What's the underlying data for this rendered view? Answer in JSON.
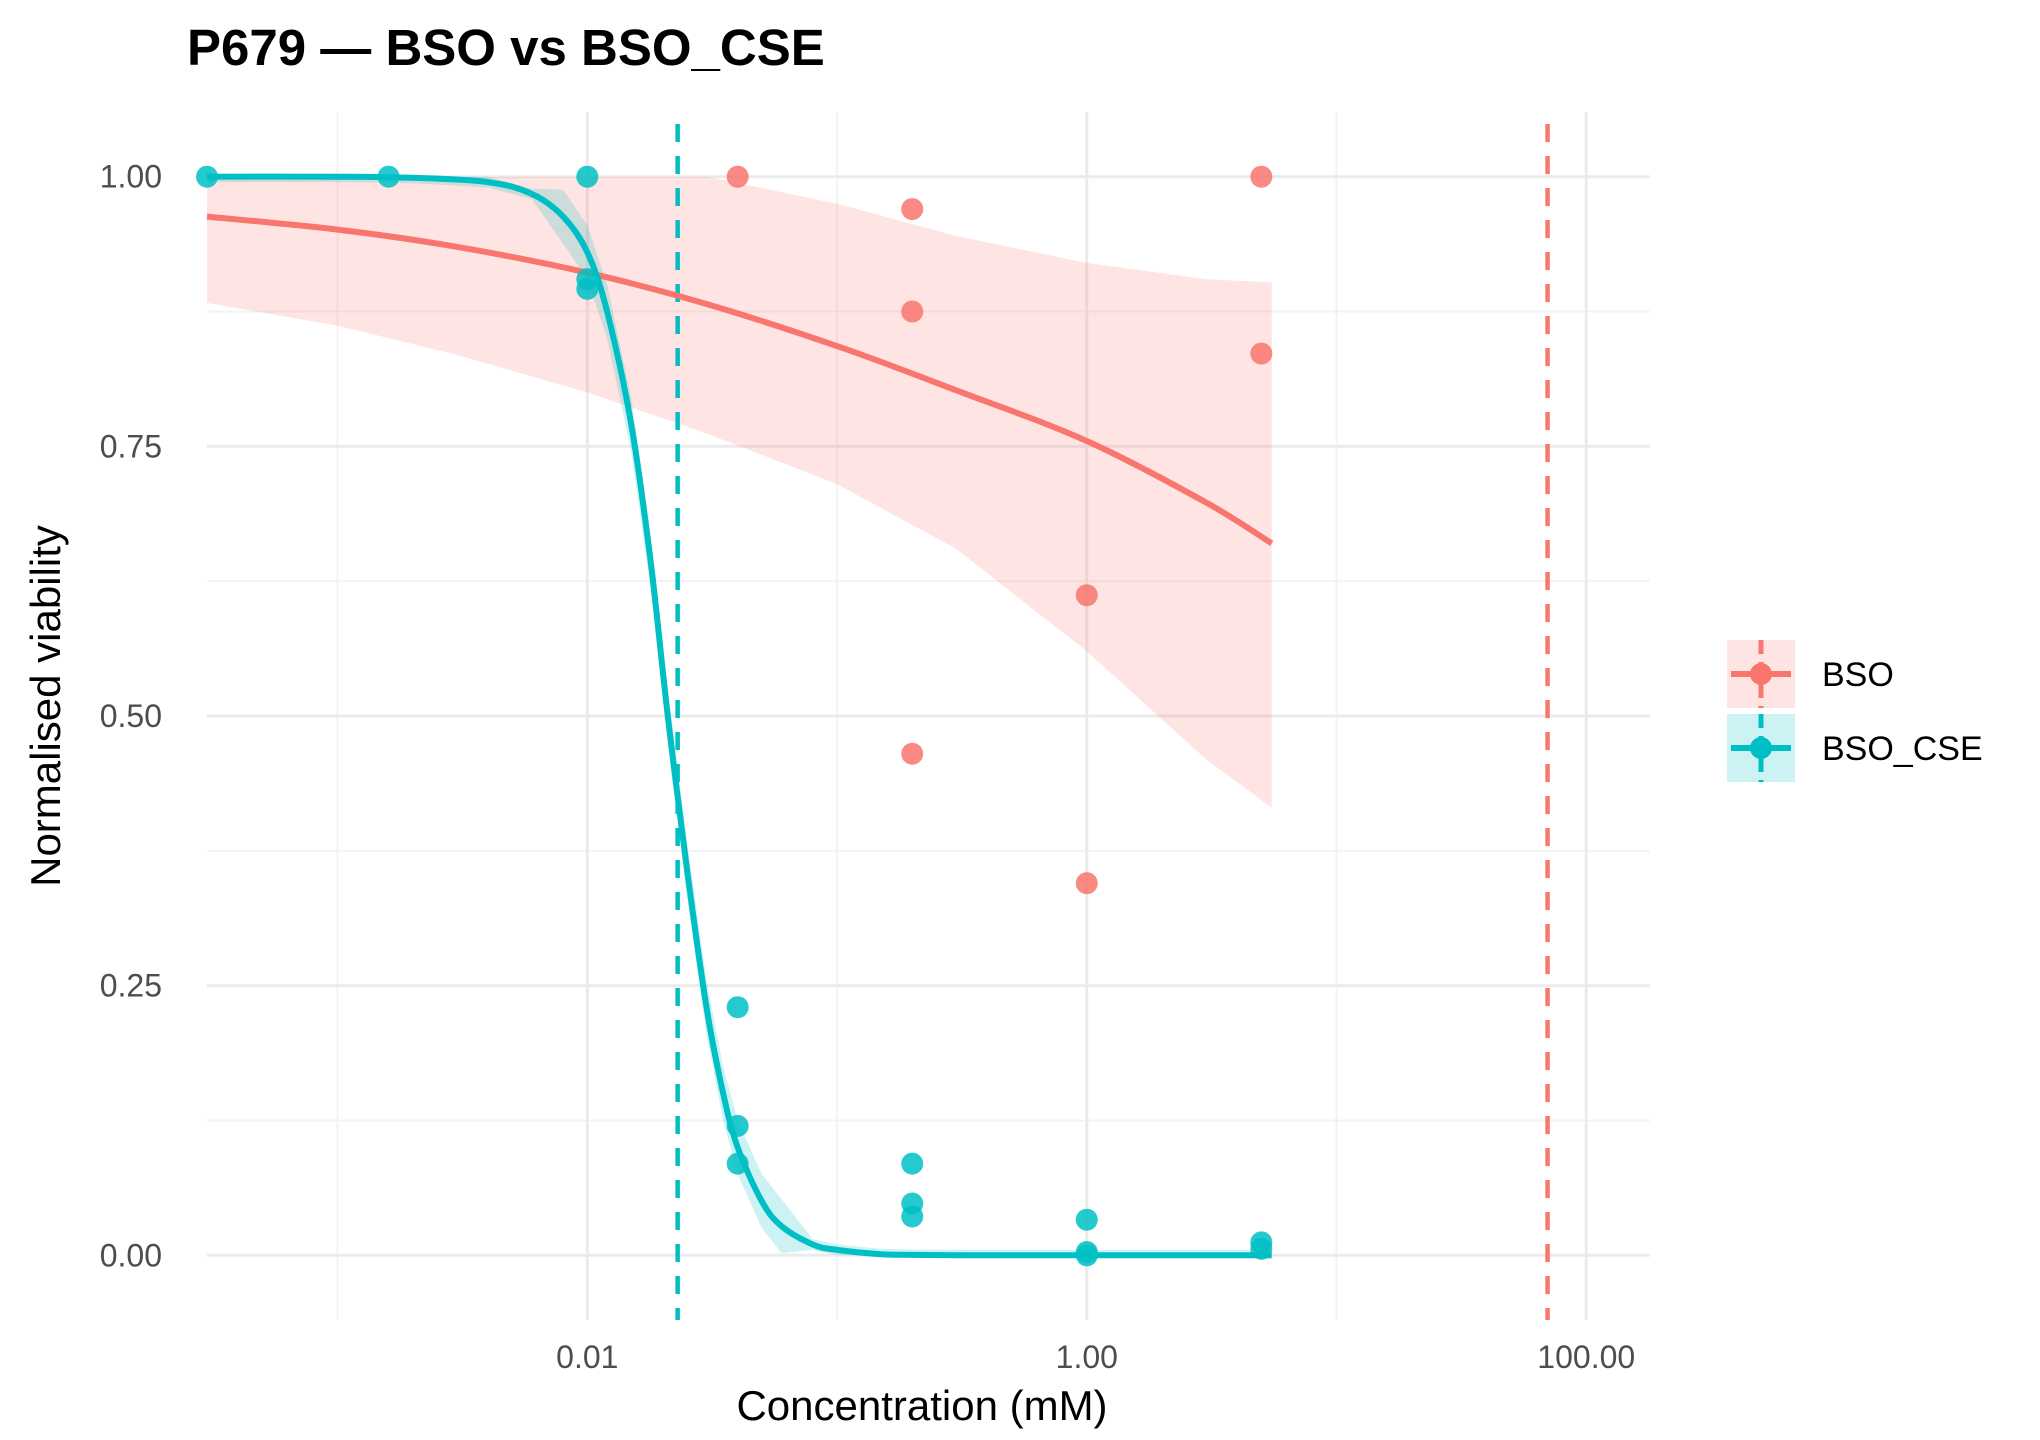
{
  "chart_data": {
    "type": "scatter",
    "title": "P679 — BSO vs BSO_CSE",
    "xlabel": "Concentration (mM)",
    "ylabel": "Normalised viability",
    "x_scale": "log10",
    "xlim": [
      0.0003,
      180
    ],
    "ylim": [
      -0.06,
      1.06
    ],
    "x_ticks": [
      {
        "value": 0.01,
        "label": "0.01"
      },
      {
        "value": 1,
        "label": "1.00"
      },
      {
        "value": 100,
        "label": "100.00"
      }
    ],
    "y_ticks": [
      {
        "value": 0,
        "label": "0.00"
      },
      {
        "value": 0.25,
        "label": "0.25"
      },
      {
        "value": 0.5,
        "label": "0.50"
      },
      {
        "value": 0.75,
        "label": "0.75"
      },
      {
        "value": 1,
        "label": "1.00"
      }
    ],
    "grid": true,
    "legend_position": "right",
    "series": [
      {
        "name": "BSO",
        "color": "#F8766D",
        "points": [
          {
            "x": 0.04,
            "y": 1.0
          },
          {
            "x": 0.2,
            "y": 0.97
          },
          {
            "x": 0.2,
            "y": 0.875
          },
          {
            "x": 0.2,
            "y": 0.465
          },
          {
            "x": 1.0,
            "y": 0.612
          },
          {
            "x": 1.0,
            "y": 0.345
          },
          {
            "x": 5.0,
            "y": 1.0
          },
          {
            "x": 5.0,
            "y": 0.836
          }
        ],
        "fit": {
          "x": [
            0.0003,
            0.001,
            0.003,
            0.01,
            0.03,
            0.1,
            0.3,
            1,
            3,
            5.5
          ],
          "y": [
            0.963,
            0.951,
            0.935,
            0.911,
            0.882,
            0.843,
            0.802,
            0.755,
            0.698,
            0.66
          ]
        },
        "band": {
          "x": [
            0.0003,
            0.001,
            0.003,
            0.01,
            0.03,
            0.1,
            0.3,
            1,
            3,
            5.5
          ],
          "lower": [
            0.883,
            0.862,
            0.835,
            0.8,
            0.762,
            0.715,
            0.655,
            0.56,
            0.46,
            0.415
          ],
          "upper": [
            1.0,
            1.0,
            1.0,
            1.0,
            1.0,
            0.975,
            0.945,
            0.92,
            0.905,
            0.902
          ]
        },
        "ic50": 70
      },
      {
        "name": "BSO_CSE",
        "color": "#00BFC4",
        "points": [
          {
            "x": 0.0003,
            "y": 1.0
          },
          {
            "x": 0.0016,
            "y": 1.0
          },
          {
            "x": 0.01,
            "y": 1.0
          },
          {
            "x": 0.01,
            "y": 0.905
          },
          {
            "x": 0.01,
            "y": 0.896
          },
          {
            "x": 0.04,
            "y": 0.23
          },
          {
            "x": 0.04,
            "y": 0.12
          },
          {
            "x": 0.04,
            "y": 0.085
          },
          {
            "x": 0.2,
            "y": 0.085
          },
          {
            "x": 0.2,
            "y": 0.048
          },
          {
            "x": 0.2,
            "y": 0.036
          },
          {
            "x": 1.0,
            "y": 0.033
          },
          {
            "x": 1.0,
            "y": 0.003
          },
          {
            "x": 1.0,
            "y": 0.0
          },
          {
            "x": 5.0,
            "y": 0.012
          },
          {
            "x": 5.0,
            "y": 0.006
          }
        ],
        "fit": {
          "x": [
            0.0003,
            0.001,
            0.002,
            0.004,
            0.006,
            0.008,
            0.01,
            0.012,
            0.015,
            0.018,
            0.021,
            0.025,
            0.03,
            0.035,
            0.04,
            0.05,
            0.06,
            0.08,
            0.1,
            0.15,
            0.2,
            0.3,
            0.5,
            1,
            2,
            5.5
          ],
          "y": [
            1.0,
            1.0,
            0.999,
            0.995,
            0.984,
            0.963,
            0.93,
            0.875,
            0.77,
            0.64,
            0.5,
            0.36,
            0.23,
            0.15,
            0.1,
            0.05,
            0.027,
            0.01,
            0.005,
            0.001,
            0.0004,
            0.0001,
            0.0,
            0.0,
            0.0,
            0.0
          ]
        },
        "band_halfwidth": 0.025,
        "ic50": 0.023
      }
    ]
  }
}
